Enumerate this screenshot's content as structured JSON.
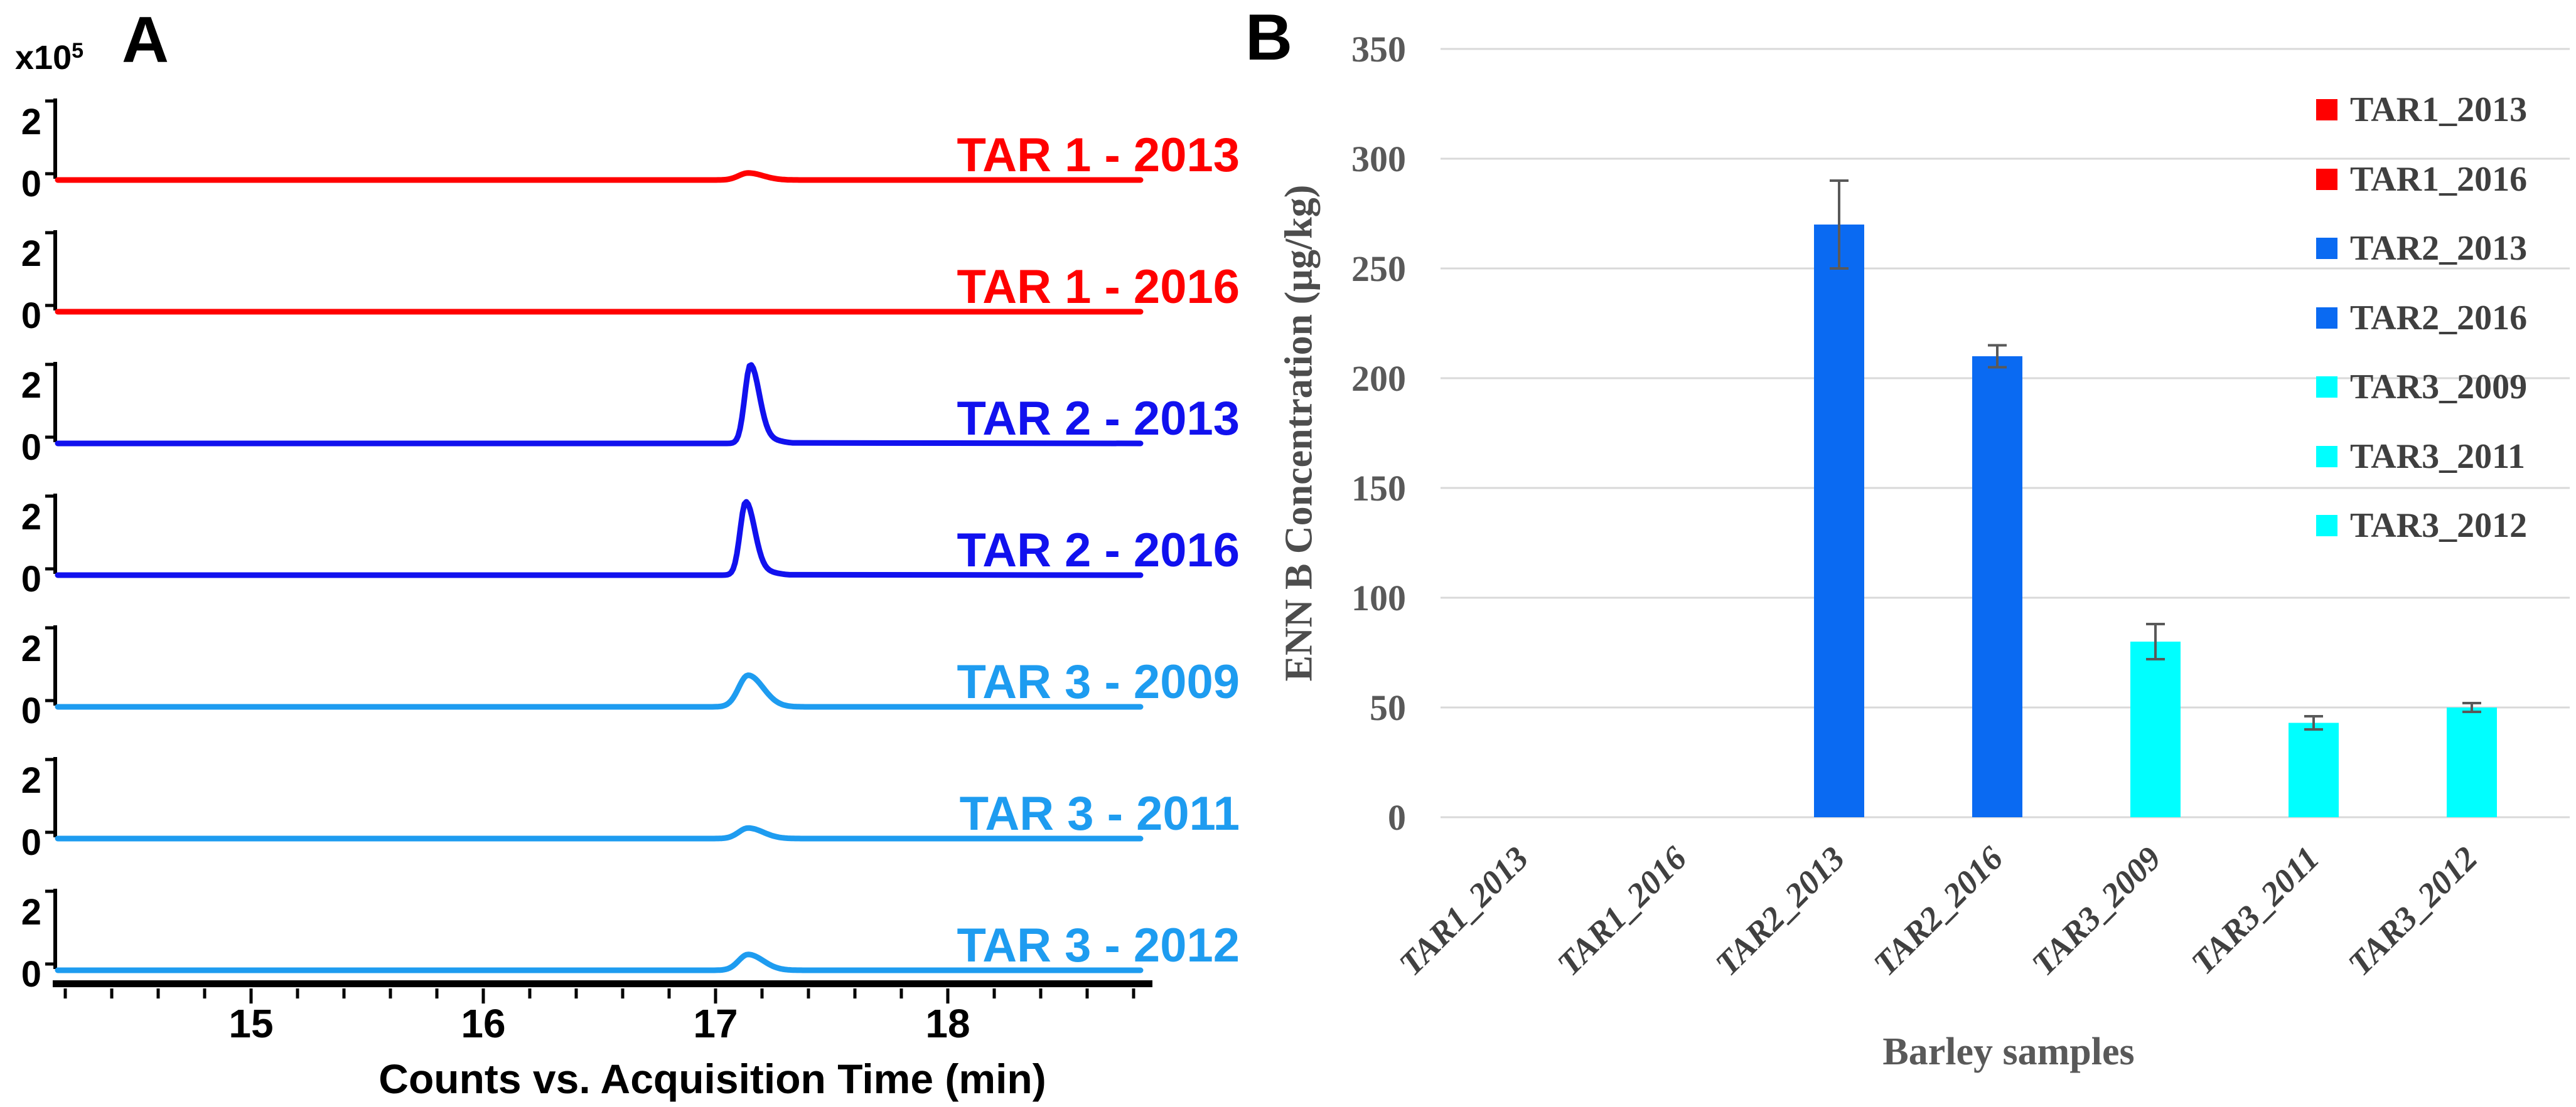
{
  "labels": {
    "panel_a": "A",
    "panel_b": "B",
    "a_scale_base": "x10",
    "a_scale_exp": "5"
  },
  "chart_data": [
    {
      "id": "A",
      "type": "line",
      "description": "Stacked extracted-ion chromatograms, one sub-trace per barley sample",
      "xlabel": "Counts vs. Acquisition Time (min)",
      "y_scale_label": "x10^5",
      "xlim": [
        14.15,
        18.9
      ],
      "x_ticks": [
        15,
        16,
        17,
        18
      ],
      "x_minor_tick_step": 0.2,
      "subplot_ylim": [
        0,
        2
      ],
      "subplot_y_ticks": [
        "2",
        "0"
      ],
      "series": [
        {
          "name": "TAR 1 - 2013",
          "color": "#FF0000",
          "peak_time_min": 17.14,
          "peak_height_1e5": 0.2
        },
        {
          "name": "TAR 1 - 2016",
          "color": "#FF0000",
          "peak_time_min": 17.14,
          "peak_height_1e5": 0.0
        },
        {
          "name": "TAR 2 - 2013",
          "color": "#1111EE",
          "peak_time_min": 17.15,
          "peak_height_1e5": 2.2
        },
        {
          "name": "TAR 2 - 2016",
          "color": "#1111EE",
          "peak_time_min": 17.13,
          "peak_height_1e5": 2.05
        },
        {
          "name": "TAR 3 - 2009",
          "color": "#1E9CF0",
          "peak_time_min": 17.14,
          "peak_height_1e5": 0.9
        },
        {
          "name": "TAR 3 - 2011",
          "color": "#1E9CF0",
          "peak_time_min": 17.14,
          "peak_height_1e5": 0.3
        },
        {
          "name": "TAR 3 - 2012",
          "color": "#1E9CF0",
          "peak_time_min": 17.14,
          "peak_height_1e5": 0.45
        }
      ]
    },
    {
      "id": "B",
      "type": "bar",
      "title": "",
      "xlabel": "Barley samples",
      "ylabel": "ENN B Concentration (µg/kg)",
      "ylim": [
        0,
        350
      ],
      "y_ticks": [
        0,
        50,
        100,
        150,
        200,
        250,
        300,
        350
      ],
      "grid": true,
      "grid_color": "#D9D9D9",
      "error_bar_color": "#595959",
      "categories": [
        "TAR1_2013",
        "TAR1_2016",
        "TAR2_2013",
        "TAR2_2016",
        "TAR3_2009",
        "TAR3_2011",
        "TAR3_2012"
      ],
      "values": [
        0,
        0,
        270,
        210,
        80,
        43,
        50
      ],
      "errors": [
        0,
        0,
        20,
        5,
        8,
        3,
        2
      ],
      "bar_colors": [
        "#FF0000",
        "#FF0000",
        "#0A6AF2",
        "#0A6AF2",
        "#00FFFF",
        "#00FFFF",
        "#00FFFF"
      ],
      "legend_position": "upper right",
      "legend": [
        {
          "label": "TAR1_2013",
          "color": "#FF0000"
        },
        {
          "label": "TAR1_2016",
          "color": "#FF0000"
        },
        {
          "label": "TAR2_2013",
          "color": "#0A6AF2"
        },
        {
          "label": "TAR2_2016",
          "color": "#0A6AF2"
        },
        {
          "label": "TAR3_2009",
          "color": "#00FFFF"
        },
        {
          "label": "TAR3_2011",
          "color": "#00FFFF"
        },
        {
          "label": "TAR3_2012",
          "color": "#00FFFF"
        }
      ]
    }
  ]
}
